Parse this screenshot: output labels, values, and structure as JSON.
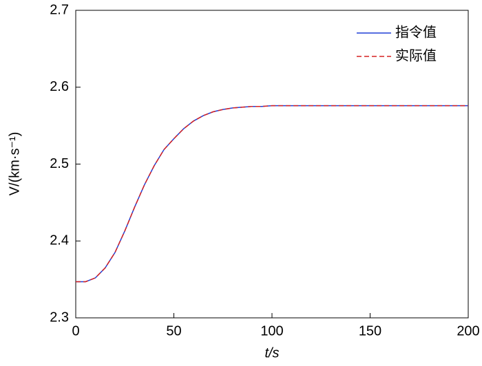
{
  "chart_data": {
    "type": "line",
    "xlabel": "t/s",
    "ylabel": "V/(km·s⁻¹)",
    "x": [
      0,
      5,
      10,
      15,
      20,
      25,
      30,
      35,
      40,
      45,
      50,
      55,
      60,
      65,
      70,
      75,
      80,
      85,
      90,
      95,
      100,
      120,
      150,
      200
    ],
    "series": [
      {
        "name": "指令值",
        "color": "#1f3fd6",
        "linestyle": "solid",
        "values": [
          2.347,
          2.347,
          2.352,
          2.365,
          2.385,
          2.413,
          2.444,
          2.473,
          2.498,
          2.519,
          2.533,
          2.546,
          2.556,
          2.563,
          2.568,
          2.571,
          2.573,
          2.574,
          2.575,
          2.575,
          2.576,
          2.576,
          2.576,
          2.576
        ]
      },
      {
        "name": "实际值",
        "color": "#d62020",
        "linestyle": "dashed",
        "values": [
          2.347,
          2.347,
          2.352,
          2.365,
          2.385,
          2.413,
          2.444,
          2.473,
          2.498,
          2.519,
          2.533,
          2.546,
          2.556,
          2.563,
          2.568,
          2.571,
          2.573,
          2.574,
          2.575,
          2.575,
          2.576,
          2.576,
          2.576,
          2.576
        ]
      }
    ],
    "xlim": [
      0,
      200
    ],
    "xticks": [
      0,
      50,
      100,
      150,
      200
    ],
    "ylim": [
      2.3,
      2.7
    ],
    "yticks": [
      2.3,
      2.4,
      2.5,
      2.6,
      2.7
    ],
    "legend": "upper right",
    "grid": false
  }
}
